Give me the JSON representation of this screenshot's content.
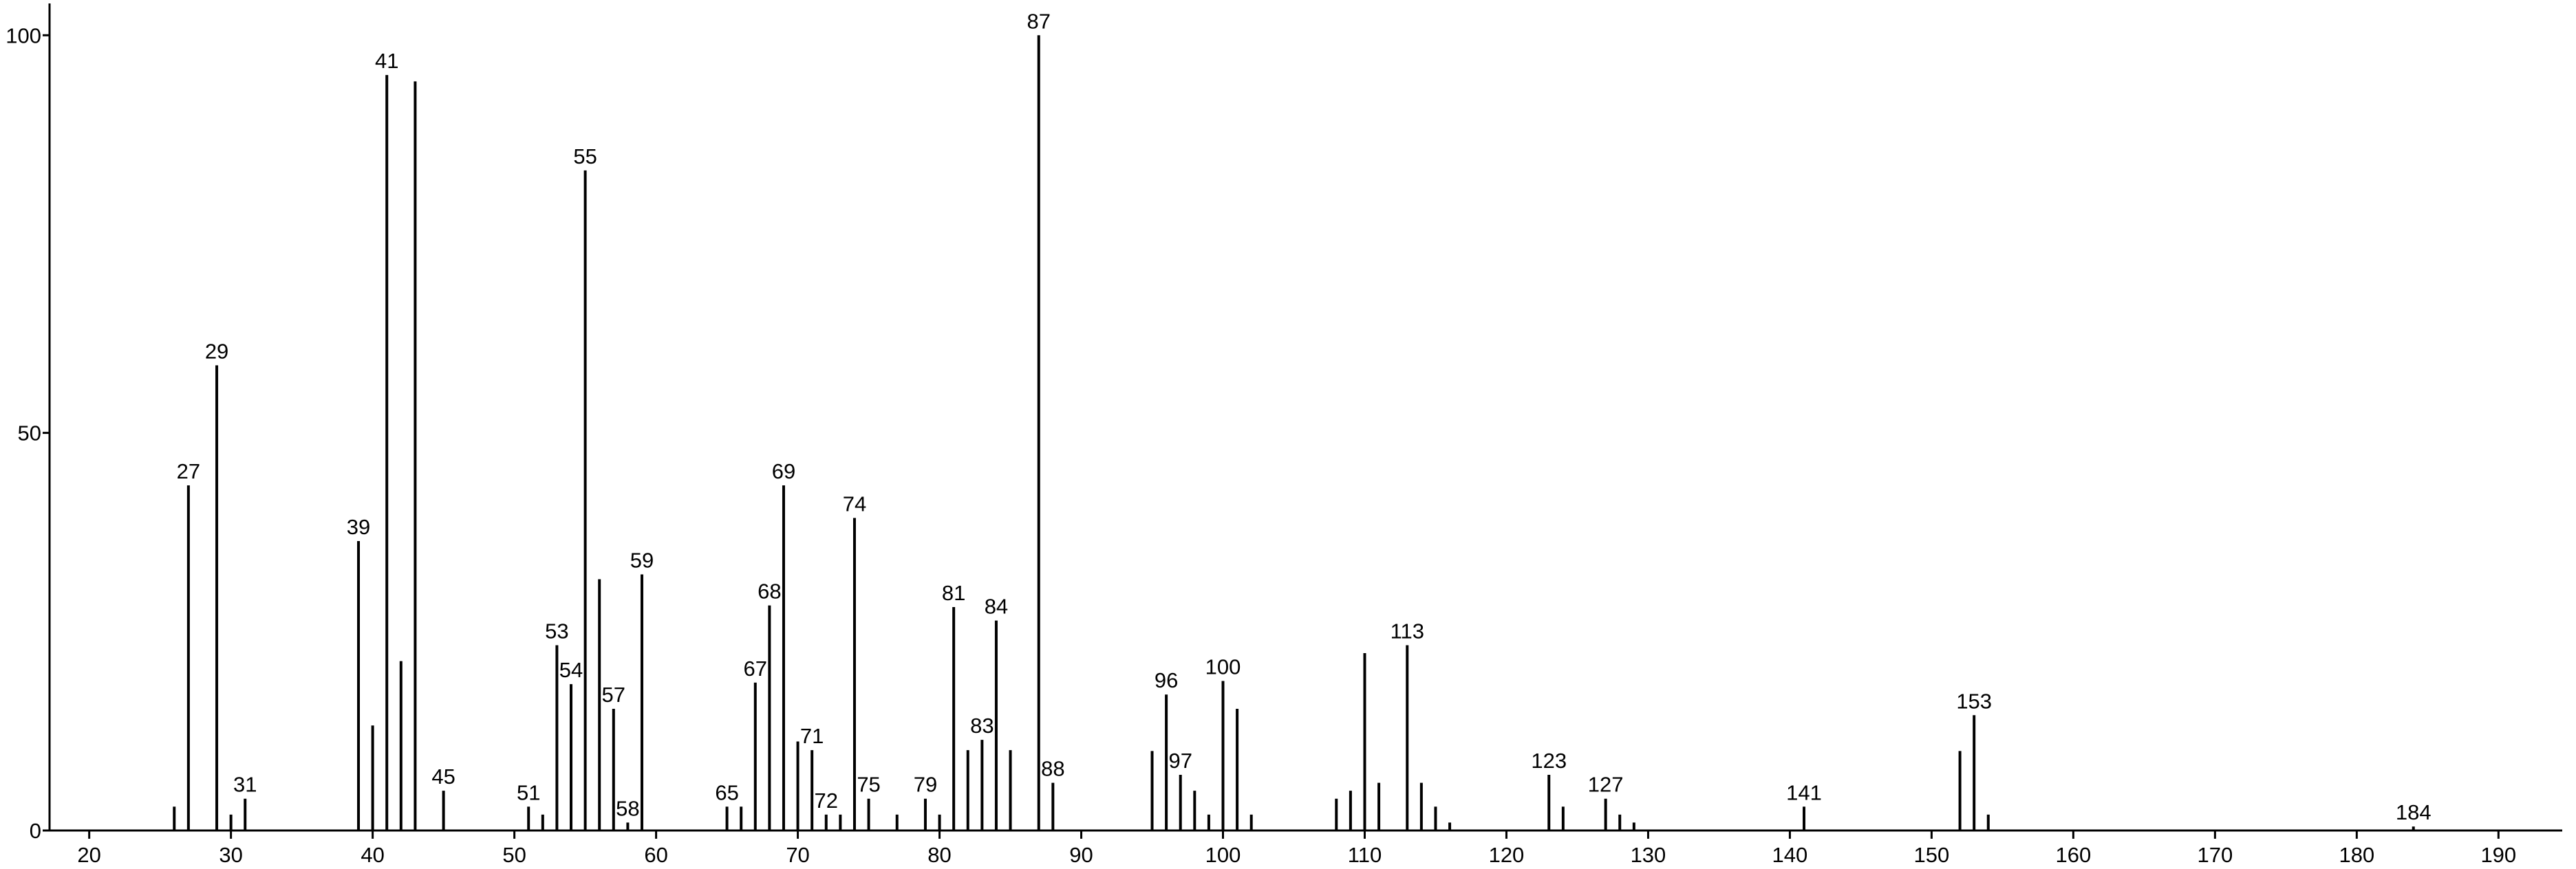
{
  "chart_data": {
    "type": "stem",
    "x": [
      26,
      27,
      29,
      30,
      31,
      39,
      40,
      41,
      42,
      43,
      45,
      51,
      52,
      53,
      54,
      55,
      56,
      57,
      58,
      59,
      65,
      66,
      67,
      68,
      69,
      70,
      71,
      72,
      73,
      74,
      75,
      77,
      79,
      80,
      81,
      82,
      83,
      84,
      85,
      87,
      88,
      95,
      96,
      97,
      98,
      99,
      100,
      101,
      102,
      108,
      109,
      110,
      111,
      113,
      114,
      115,
      116,
      123,
      124,
      127,
      128,
      129,
      141,
      152,
      153,
      154,
      184
    ],
    "values": [
      3,
      43.4,
      58.5,
      2,
      4,
      36.4,
      13.2,
      95,
      21.3,
      94.2,
      5,
      3,
      2,
      23.3,
      18.4,
      83,
      31.6,
      15.3,
      1,
      32.2,
      3,
      3,
      18.6,
      28.3,
      43.4,
      11.2,
      10.1,
      2,
      2,
      39.3,
      4,
      2,
      4,
      2,
      28.1,
      10.1,
      11.4,
      26.4,
      10.1,
      100,
      6,
      10,
      17.1,
      7,
      5,
      2,
      18.8,
      15.3,
      2,
      4,
      5,
      22.3,
      6,
      23.3,
      6,
      3,
      1,
      7,
      3,
      4,
      2,
      1,
      3,
      10,
      14.5,
      2,
      0.5
    ],
    "labels": [
      false,
      true,
      true,
      false,
      true,
      true,
      false,
      true,
      false,
      false,
      true,
      true,
      false,
      true,
      true,
      true,
      false,
      true,
      true,
      true,
      true,
      false,
      true,
      true,
      true,
      false,
      true,
      true,
      false,
      true,
      true,
      false,
      true,
      false,
      true,
      false,
      true,
      true,
      false,
      true,
      true,
      false,
      true,
      true,
      false,
      false,
      true,
      false,
      false,
      false,
      false,
      false,
      false,
      true,
      false,
      false,
      false,
      true,
      false,
      true,
      false,
      false,
      true,
      false,
      true,
      false,
      true
    ],
    "color": "#000000",
    "xlim": [
      17.2,
      194.5
    ],
    "xticks": [
      20,
      30,
      40,
      50,
      60,
      70,
      80,
      90,
      100,
      110,
      120,
      130,
      140,
      150,
      160,
      170,
      180,
      190
    ],
    "ylim": [
      0,
      104
    ],
    "yticks": [
      0,
      50,
      100
    ]
  }
}
